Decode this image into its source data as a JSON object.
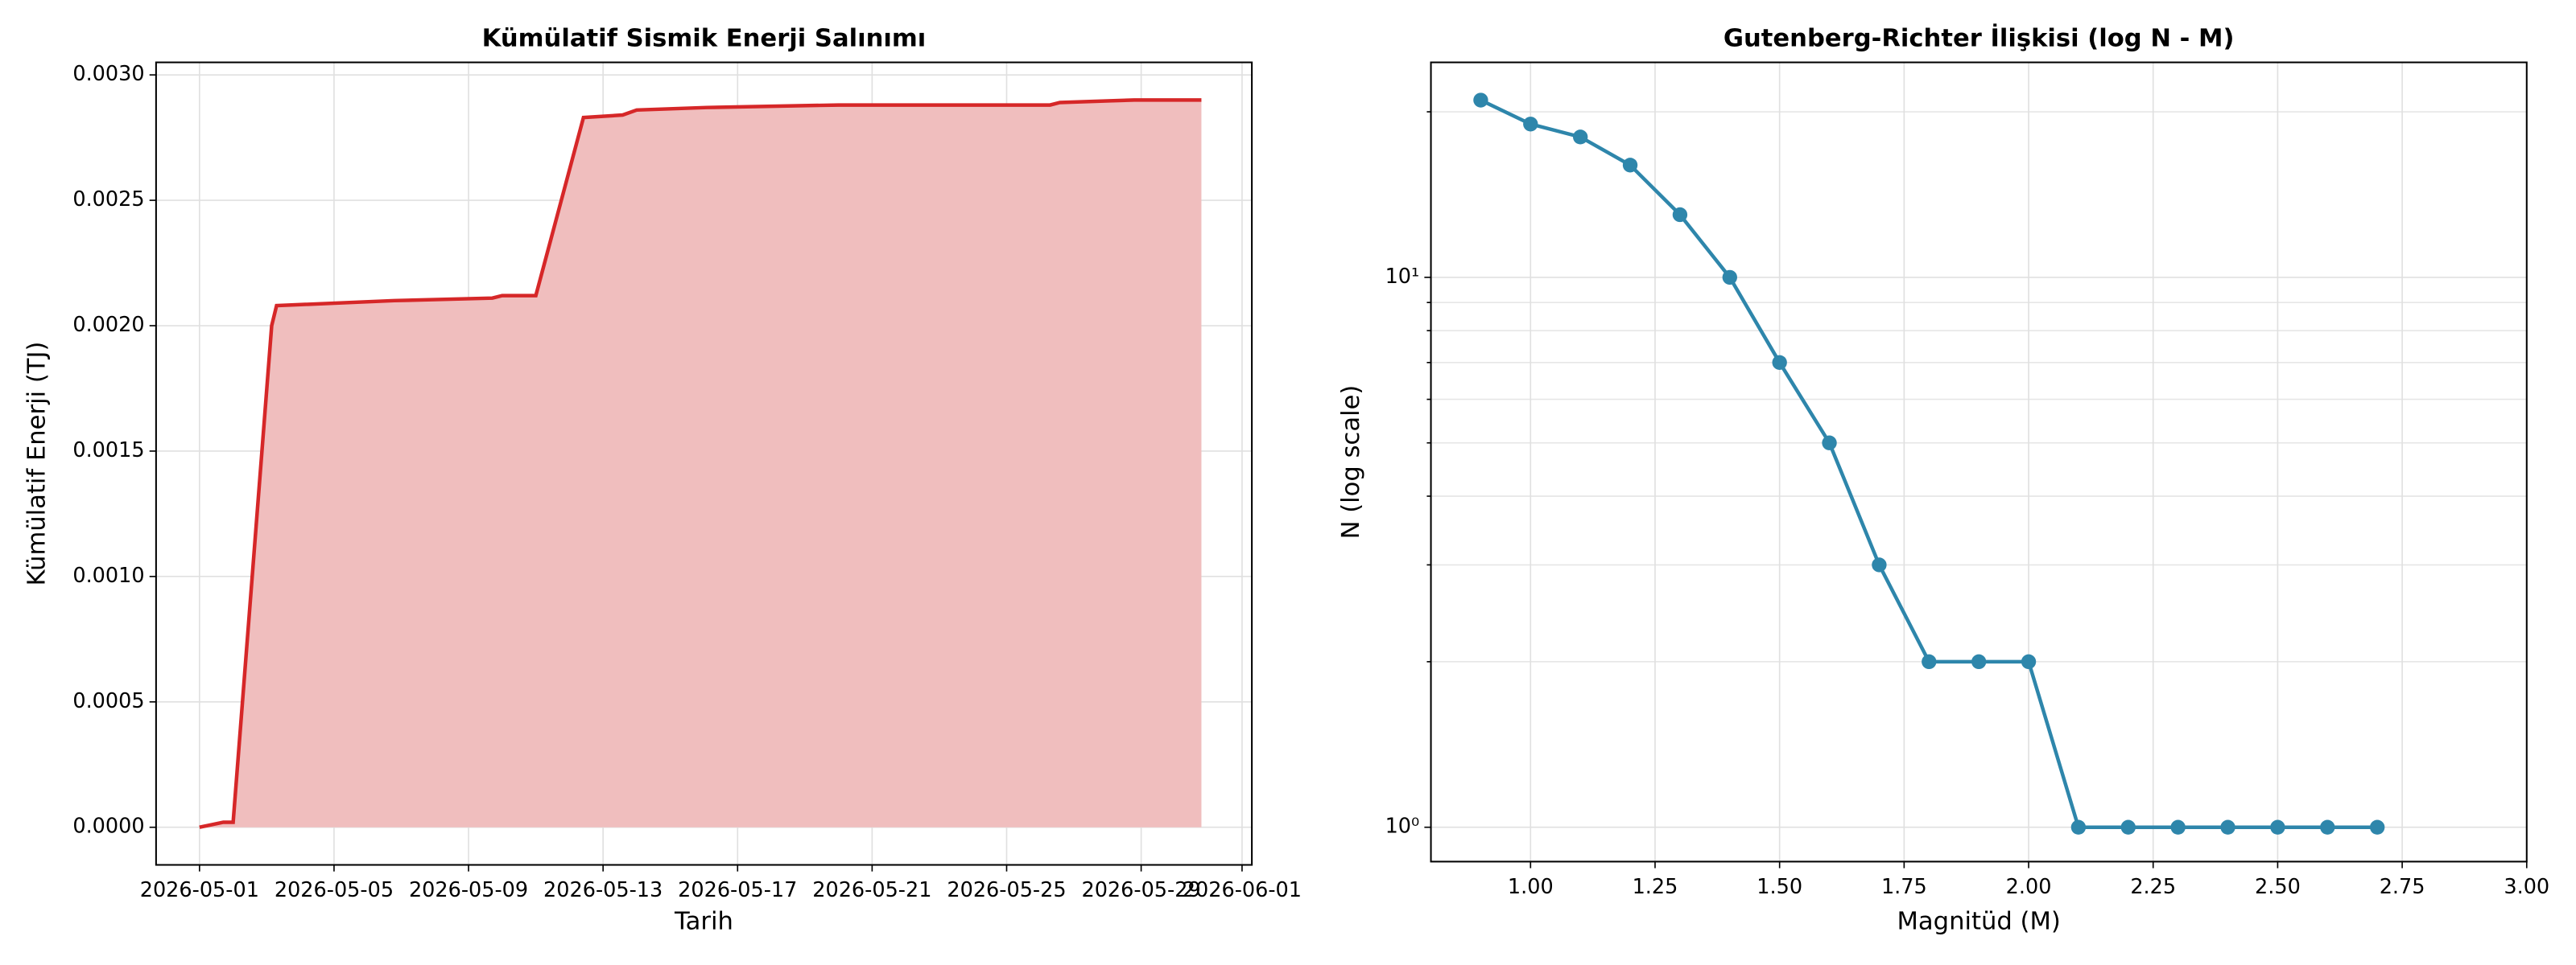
{
  "chart_data": [
    {
      "type": "area",
      "title": "Kümülatif Sismik Enerji Salınımı",
      "xlabel": "Tarih",
      "ylabel": "Kümülatif Enerji (TJ)",
      "x": [
        "2026-05-01 00:00",
        "2026-05-01 17:00",
        "2026-05-02 00:00",
        "2026-05-03 03:30",
        "2026-05-03 07:00",
        "2026-05-06 19:00",
        "2026-05-09 17:00",
        "2026-05-10 00:00",
        "2026-05-11 00:00",
        "2026-05-12 10:00",
        "2026-05-13 14:00",
        "2026-05-14 00:00",
        "2026-05-16 02:00",
        "2026-05-20 00:00",
        "2026-05-26 07:00",
        "2026-05-26 14:00",
        "2026-05-28 19:00",
        "2026-05-30 19:00"
      ],
      "values": [
        0.0,
        2e-05,
        2e-05,
        0.002,
        0.00208,
        0.0021,
        0.00211,
        0.00212,
        0.00212,
        0.00283,
        0.00284,
        0.00286,
        0.00287,
        0.00288,
        0.00288,
        0.00289,
        0.0029,
        0.0029
      ],
      "color": "#d62728",
      "fill_color": "#f0bebe",
      "xlim": [
        "2026-04-29 17:00",
        "2026-06-01 07:00"
      ],
      "xticks": [
        "2026-05-01",
        "2026-05-05",
        "2026-05-09",
        "2026-05-13",
        "2026-05-17",
        "2026-05-21",
        "2026-05-25",
        "2026-05-29",
        "2026-06-01"
      ],
      "ylim": [
        -0.00015,
        0.00305
      ],
      "yticks": [
        {
          "value": 0,
          "label": "0.0000"
        },
        {
          "value": 0.0005,
          "label": "0.0005"
        },
        {
          "value": 0.001,
          "label": "0.0010"
        },
        {
          "value": 0.0015,
          "label": "0.0015"
        },
        {
          "value": 0.002,
          "label": "0.0020"
        },
        {
          "value": 0.0025,
          "label": "0.0025"
        },
        {
          "value": 0.003,
          "label": "0.0030"
        }
      ],
      "grid": true
    },
    {
      "type": "line",
      "title": "Gutenberg-Richter İlişkisi (log N - M)",
      "xlabel": "Magnitüd (M)",
      "ylabel": "N (log scale)",
      "x": [
        0.9,
        1.0,
        1.1,
        1.2,
        1.3,
        1.4,
        1.5,
        1.6,
        1.7,
        1.8,
        1.9,
        2.0,
        2.1,
        2.2,
        2.3,
        2.4,
        2.5,
        2.6,
        2.7
      ],
      "values": [
        21,
        19,
        18,
        16,
        13,
        10,
        7,
        5,
        3,
        2,
        2,
        2,
        1,
        1,
        1,
        1,
        1,
        1,
        1
      ],
      "color": "#2e86ab",
      "log_y": true,
      "xlim": [
        0.8,
        3.0
      ],
      "xticks": [
        {
          "value": 1,
          "label": "1.00"
        },
        {
          "value": 1.25,
          "label": "1.25"
        },
        {
          "value": 1.5,
          "label": "1.50"
        },
        {
          "value": 1.75,
          "label": "1.75"
        },
        {
          "value": 2,
          "label": "2.00"
        },
        {
          "value": 2.25,
          "label": "2.25"
        },
        {
          "value": 2.5,
          "label": "2.50"
        },
        {
          "value": 2.75,
          "label": "2.75"
        },
        {
          "value": 3,
          "label": "3.00"
        }
      ],
      "ylim": [
        0.866,
        24.6
      ],
      "yticks": [
        {
          "value": 1,
          "label": "10⁰"
        },
        {
          "value": 10,
          "label": "10¹"
        }
      ],
      "minor_yticks": [
        2,
        3,
        4,
        5,
        6,
        7,
        8,
        9,
        20
      ],
      "grid": true
    }
  ]
}
